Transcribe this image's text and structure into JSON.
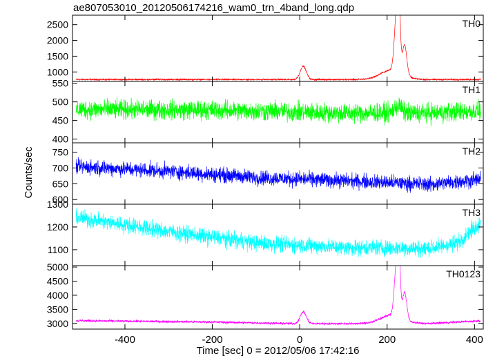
{
  "header": {
    "title": "ae807053010_20120506174216_wam0_trn_4band_long.qdp"
  },
  "chart_data": {
    "type": "line",
    "title": "ae807053010_20120506174216_wam0_trn_4band_long.qdp",
    "xlabel": "Time [sec] 0 = 2012/05/06 17:42:16",
    "ylabel": "Counts/sec",
    "xlim": [
      -520,
      420
    ],
    "x_ticks": [
      -400,
      -200,
      0,
      200,
      400
    ],
    "grid": false,
    "series": [
      {
        "name": "TH0",
        "color": "#ff0000",
        "ylim": [
          700,
          2800
        ],
        "y_ticks": [
          1000,
          1500,
          2000,
          2500
        ],
        "baseline": [
          [
            -520,
            760
          ],
          [
            0,
            760
          ],
          [
            420,
            760
          ]
        ],
        "noise": 20,
        "features": [
          [
            8,
            420,
            7
          ],
          [
            222,
            1950,
            5
          ],
          [
            227,
            1700,
            3
          ],
          [
            240,
            950,
            5
          ],
          [
            210,
            300,
            25
          ]
        ]
      },
      {
        "name": "TH1",
        "color": "#00ff00",
        "ylim": [
          390,
          555
        ],
        "y_ticks": [
          400,
          450,
          500,
          550
        ],
        "baseline": [
          [
            -520,
            480
          ],
          [
            -200,
            478
          ],
          [
            100,
            470
          ],
          [
            300,
            470
          ],
          [
            420,
            476
          ]
        ],
        "noise": 22,
        "features": [
          [
            225,
            20,
            8
          ]
        ]
      },
      {
        "name": "TH2",
        "color": "#0000ff",
        "ylim": [
          585,
          780
        ],
        "y_ticks": [
          600,
          650,
          700,
          750
        ],
        "baseline": [
          [
            -520,
            705
          ],
          [
            -300,
            690
          ],
          [
            -100,
            670
          ],
          [
            100,
            660
          ],
          [
            300,
            648
          ],
          [
            420,
            665
          ]
        ],
        "noise": 20,
        "features": []
      },
      {
        "name": "TH3",
        "color": "#00ffff",
        "ylim": [
          1030,
          1300
        ],
        "y_ticks": [
          1100,
          1200,
          1300
        ],
        "baseline": [
          [
            -520,
            1245
          ],
          [
            -300,
            1180
          ],
          [
            -100,
            1130
          ],
          [
            100,
            1110
          ],
          [
            300,
            1105
          ],
          [
            360,
            1130
          ],
          [
            420,
            1230
          ]
        ],
        "noise": 30,
        "features": []
      },
      {
        "name": "TH0123",
        "color": "#ff00ff",
        "ylim": [
          2800,
          5050
        ],
        "y_ticks": [
          3000,
          3500,
          4000,
          4500,
          5000
        ],
        "baseline": [
          [
            -520,
            3100
          ],
          [
            -200,
            3050
          ],
          [
            0,
            2990
          ],
          [
            300,
            3000
          ],
          [
            420,
            3100
          ]
        ],
        "noise": 35,
        "features": [
          [
            8,
            420,
            7
          ],
          [
            222,
            1950,
            5
          ],
          [
            227,
            1700,
            3
          ],
          [
            240,
            950,
            5
          ],
          [
            210,
            300,
            25
          ]
        ]
      }
    ]
  }
}
